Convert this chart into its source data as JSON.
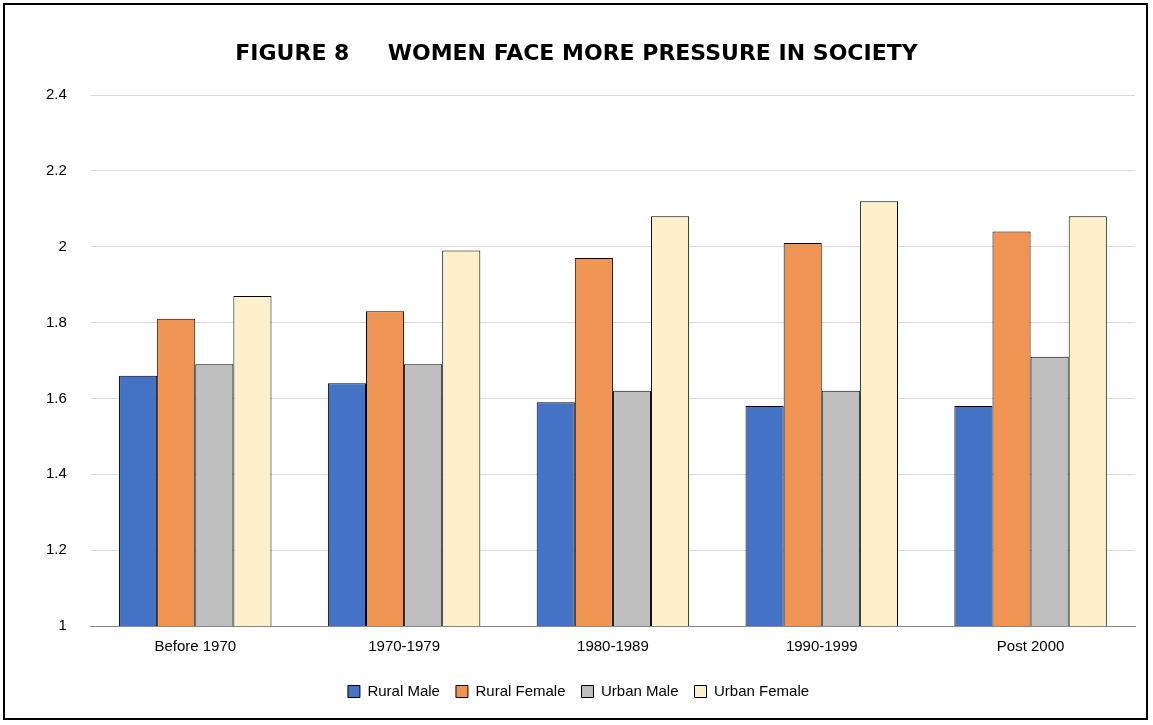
{
  "chart_data": {
    "type": "bar",
    "title": "FIGURE 8     WOMEN FACE MORE PRESSURE IN SOCIETY",
    "categories": [
      "Before 1970",
      "1970-1979",
      "1980-1989",
      "1990-1999",
      "Post 2000"
    ],
    "series": [
      {
        "name": "Rural Male",
        "color": "#4472c4",
        "values": [
          1.66,
          1.64,
          1.59,
          1.58,
          1.58
        ]
      },
      {
        "name": "Rural Female",
        "color": "#f09454",
        "values": [
          1.81,
          1.83,
          1.97,
          2.01,
          2.04
        ]
      },
      {
        "name": "Urban Male",
        "color": "#bfbfbf",
        "values": [
          1.69,
          1.69,
          1.62,
          1.62,
          1.71
        ]
      },
      {
        "name": "Urban Female",
        "color": "#fff0cc",
        "values": [
          1.87,
          1.99,
          2.08,
          2.12,
          2.08
        ]
      }
    ],
    "ylim": [
      1,
      2.4
    ],
    "yticks": [
      1,
      1.2,
      1.4,
      1.6,
      1.8,
      2,
      2.2,
      2.4
    ],
    "grid": "y",
    "legend": "bottom"
  }
}
